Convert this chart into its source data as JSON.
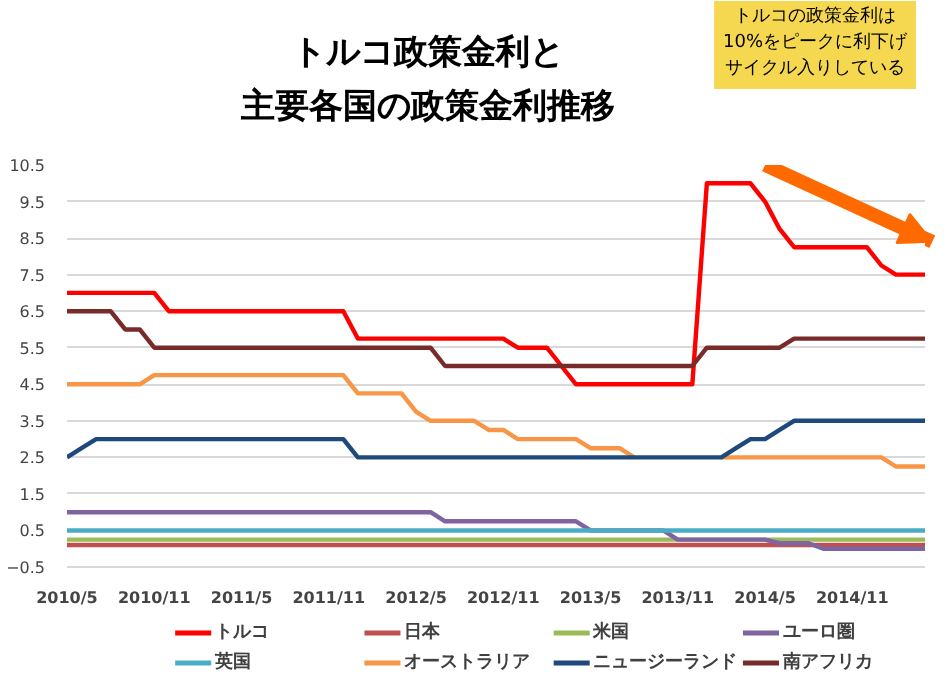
{
  "chart_data": {
    "type": "line",
    "title": "トルコ政策金利と",
    "subtitle": "主要各国の政策金利推移",
    "categories": [
      "2010/5",
      null,
      null,
      null,
      null,
      null,
      "2010/11",
      null,
      null,
      null,
      null,
      null,
      "2011/5",
      null,
      null,
      null,
      null,
      null,
      "2011/11",
      null,
      null,
      null,
      null,
      null,
      "2012/5",
      null,
      null,
      null,
      null,
      null,
      "2012/11",
      null,
      null,
      null,
      null,
      null,
      "2013/5",
      null,
      null,
      null,
      null,
      null,
      "2013/11",
      null,
      null,
      null,
      null,
      null,
      "2014/5",
      null,
      null,
      null,
      null,
      null,
      "2014/11",
      null,
      null,
      null,
      null,
      null
    ],
    "series": [
      {
        "name": "トルコ",
        "color": "#ff0000",
        "values": [
          7,
          7,
          7,
          7,
          7,
          7,
          7,
          6.5,
          6.5,
          6.5,
          6.5,
          6.5,
          6.5,
          6.5,
          6.5,
          6.5,
          6.5,
          6.5,
          6.5,
          6.5,
          5.75,
          5.75,
          5.75,
          5.75,
          5.75,
          5.75,
          5.75,
          5.75,
          5.75,
          5.75,
          5.75,
          5.5,
          5.5,
          5.5,
          5,
          4.5,
          4.5,
          4.5,
          4.5,
          4.5,
          4.5,
          4.5,
          4.5,
          4.5,
          10,
          10,
          10,
          10,
          9.5,
          8.75,
          8.25,
          8.25,
          8.25,
          8.25,
          8.25,
          8.25,
          7.75,
          7.5,
          7.5,
          7.5
        ]
      },
      {
        "name": "日本",
        "color": "#c0504d",
        "values": [
          0.1,
          0.1,
          0.1,
          0.1,
          0.1,
          0.1,
          0.1,
          0.1,
          0.1,
          0.1,
          0.1,
          0.1,
          0.1,
          0.1,
          0.1,
          0.1,
          0.1,
          0.1,
          0.1,
          0.1,
          0.1,
          0.1,
          0.1,
          0.1,
          0.1,
          0.1,
          0.1,
          0.1,
          0.1,
          0.1,
          0.1,
          0.1,
          0.1,
          0.1,
          0.1,
          0.1,
          0.1,
          0.1,
          0.1,
          0.1,
          0.1,
          0.1,
          0.1,
          0.1,
          0.1,
          0.1,
          0.1,
          0.1,
          0.1,
          0.1,
          0.1,
          0.1,
          0.1,
          0.1,
          0.1,
          0.1,
          0.1,
          0.1,
          0.1,
          0.1
        ]
      },
      {
        "name": "米国",
        "color": "#9bbb59",
        "values": [
          0.25,
          0.25,
          0.25,
          0.25,
          0.25,
          0.25,
          0.25,
          0.25,
          0.25,
          0.25,
          0.25,
          0.25,
          0.25,
          0.25,
          0.25,
          0.25,
          0.25,
          0.25,
          0.25,
          0.25,
          0.25,
          0.25,
          0.25,
          0.25,
          0.25,
          0.25,
          0.25,
          0.25,
          0.25,
          0.25,
          0.25,
          0.25,
          0.25,
          0.25,
          0.25,
          0.25,
          0.25,
          0.25,
          0.25,
          0.25,
          0.25,
          0.25,
          0.25,
          0.25,
          0.25,
          0.25,
          0.25,
          0.25,
          0.25,
          0.25,
          0.25,
          0.25,
          0.25,
          0.25,
          0.25,
          0.25,
          0.25,
          0.25,
          0.25,
          0.25
        ]
      },
      {
        "name": "ユーロ圏",
        "color": "#8064a2",
        "values": [
          1,
          1,
          1,
          1,
          1,
          1,
          1,
          1,
          1,
          1,
          1,
          1,
          1,
          1,
          1,
          1,
          1,
          1,
          1,
          1,
          1,
          1,
          1,
          1,
          1,
          1,
          0.75,
          0.75,
          0.75,
          0.75,
          0.75,
          0.75,
          0.75,
          0.75,
          0.75,
          0.75,
          0.5,
          0.5,
          0.5,
          0.5,
          0.5,
          0.5,
          0.25,
          0.25,
          0.25,
          0.25,
          0.25,
          0.25,
          0.25,
          0.15,
          0.15,
          0.15,
          0,
          0,
          0,
          0,
          0,
          0,
          0,
          0
        ]
      },
      {
        "name": "英国",
        "color": "#4bacc6",
        "values": [
          0.5,
          0.5,
          0.5,
          0.5,
          0.5,
          0.5,
          0.5,
          0.5,
          0.5,
          0.5,
          0.5,
          0.5,
          0.5,
          0.5,
          0.5,
          0.5,
          0.5,
          0.5,
          0.5,
          0.5,
          0.5,
          0.5,
          0.5,
          0.5,
          0.5,
          0.5,
          0.5,
          0.5,
          0.5,
          0.5,
          0.5,
          0.5,
          0.5,
          0.5,
          0.5,
          0.5,
          0.5,
          0.5,
          0.5,
          0.5,
          0.5,
          0.5,
          0.5,
          0.5,
          0.5,
          0.5,
          0.5,
          0.5,
          0.5,
          0.5,
          0.5,
          0.5,
          0.5,
          0.5,
          0.5,
          0.5,
          0.5,
          0.5,
          0.5,
          0.5
        ]
      },
      {
        "name": "オーストラリア",
        "color": "#f79646",
        "values": [
          4.5,
          4.5,
          4.5,
          4.5,
          4.5,
          4.5,
          4.75,
          4.75,
          4.75,
          4.75,
          4.75,
          4.75,
          4.75,
          4.75,
          4.75,
          4.75,
          4.75,
          4.75,
          4.75,
          4.75,
          4.25,
          4.25,
          4.25,
          4.25,
          3.75,
          3.5,
          3.5,
          3.5,
          3.5,
          3.25,
          3.25,
          3,
          3,
          3,
          3,
          3,
          2.75,
          2.75,
          2.75,
          2.5,
          null,
          null,
          null,
          null,
          null,
          2.5,
          2.5,
          2.5,
          2.5,
          2.5,
          2.5,
          2.5,
          2.5,
          2.5,
          2.5,
          2.5,
          2.5,
          2.25,
          2.25,
          2.25
        ]
      },
      {
        "name": "ニュージーランド",
        "color": "#1f497d",
        "values": [
          2.5,
          2.75,
          3,
          3,
          3,
          3,
          3,
          3,
          3,
          3,
          3,
          3,
          3,
          3,
          3,
          3,
          3,
          3,
          3,
          3,
          2.5,
          2.5,
          2.5,
          2.5,
          2.5,
          2.5,
          2.5,
          2.5,
          2.5,
          2.5,
          2.5,
          2.5,
          2.5,
          2.5,
          2.5,
          2.5,
          2.5,
          2.5,
          2.5,
          2.5,
          2.5,
          2.5,
          2.5,
          2.5,
          2.5,
          2.5,
          2.75,
          3,
          3,
          3.25,
          3.5,
          3.5,
          3.5,
          3.5,
          3.5,
          3.5,
          3.5,
          3.5,
          3.5,
          3.5
        ]
      },
      {
        "name": "南アフリカ",
        "color": "#772c2a",
        "values": [
          6.5,
          6.5,
          6.5,
          6.5,
          6,
          6,
          5.5,
          5.5,
          5.5,
          5.5,
          5.5,
          5.5,
          5.5,
          5.5,
          5.5,
          5.5,
          5.5,
          5.5,
          5.5,
          5.5,
          5.5,
          5.5,
          5.5,
          5.5,
          5.5,
          5.5,
          5,
          5,
          5,
          5,
          5,
          5,
          5,
          5,
          5,
          5,
          5,
          5,
          5,
          5,
          5,
          5,
          5,
          5,
          5.5,
          5.5,
          5.5,
          5.5,
          5.5,
          5.5,
          5.75,
          5.75,
          5.75,
          5.75,
          5.75,
          5.75,
          5.75,
          5.75,
          5.75,
          5.75
        ]
      }
    ],
    "ylim": [
      -0.5,
      10.5
    ],
    "yticks": [
      -0.5,
      0.5,
      1.5,
      2.5,
      3.5,
      4.5,
      5.5,
      6.5,
      7.5,
      8.5,
      9.5,
      10.5
    ],
    "grid": "y",
    "legend": "bottom",
    "line_style": "solid",
    "annotations": [
      "トルコの政策金利は",
      "10%をピークに利下げ",
      "サイクル入りしている"
    ]
  }
}
